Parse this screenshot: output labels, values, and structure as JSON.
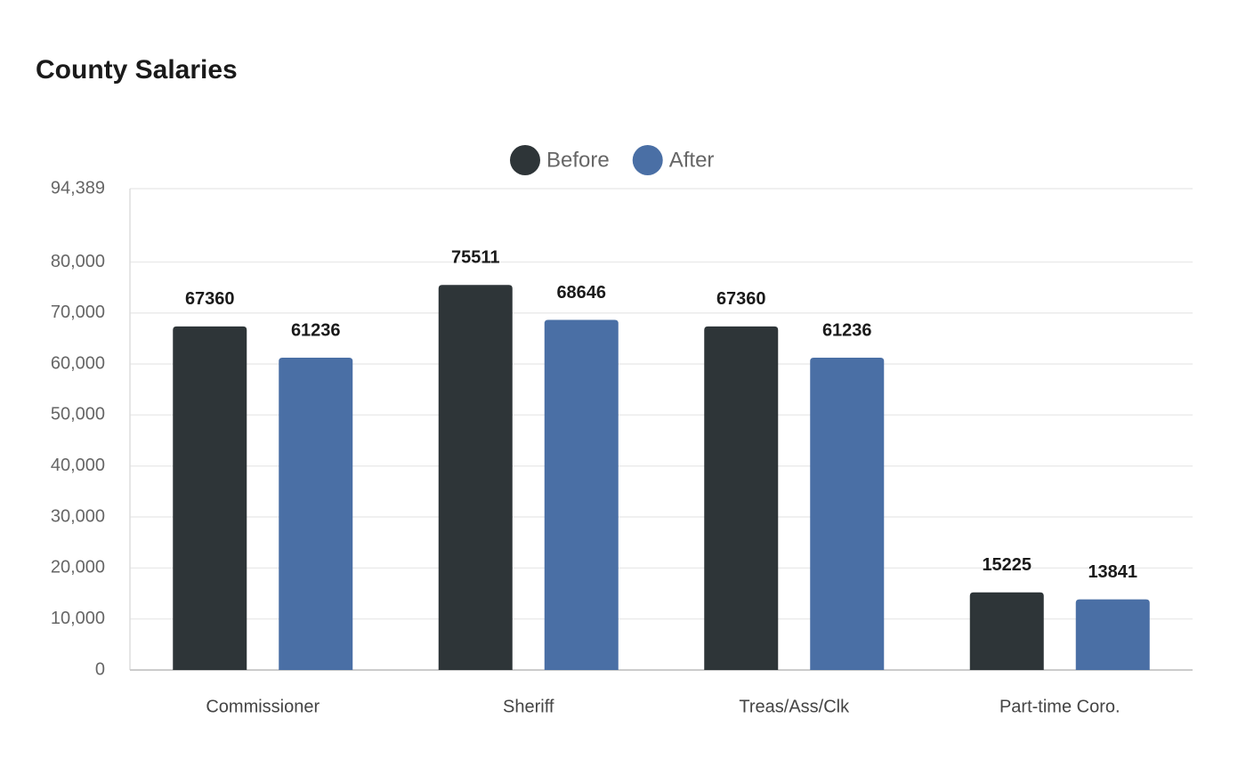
{
  "chart_data": {
    "type": "bar",
    "title": "County Salaries",
    "categories": [
      "Commissioner",
      "Sheriff",
      "Treas/Ass/Clk",
      "Part-time Coro."
    ],
    "series": [
      {
        "name": "Before",
        "color": "#2e3538",
        "values": [
          67360,
          75511,
          67360,
          15225
        ]
      },
      {
        "name": "After",
        "color": "#4a6fa5",
        "values": [
          61236,
          68646,
          61236,
          13841
        ]
      }
    ],
    "ylim": [
      0,
      94389
    ],
    "yticks": [
      0,
      {
        "value": 10000,
        "label": "10,000"
      },
      {
        "value": 20000,
        "label": "20,000"
      },
      {
        "value": 30000,
        "label": "30,000"
      },
      {
        "value": 40000,
        "label": "40,000"
      },
      {
        "value": 50000,
        "label": "50,000"
      },
      {
        "value": 60000,
        "label": "60,000"
      },
      {
        "value": 70000,
        "label": "70,000"
      },
      {
        "value": 80000,
        "label": "80,000"
      },
      {
        "value": 94389,
        "label": "94,389"
      }
    ],
    "grid": true,
    "legend": "top"
  }
}
